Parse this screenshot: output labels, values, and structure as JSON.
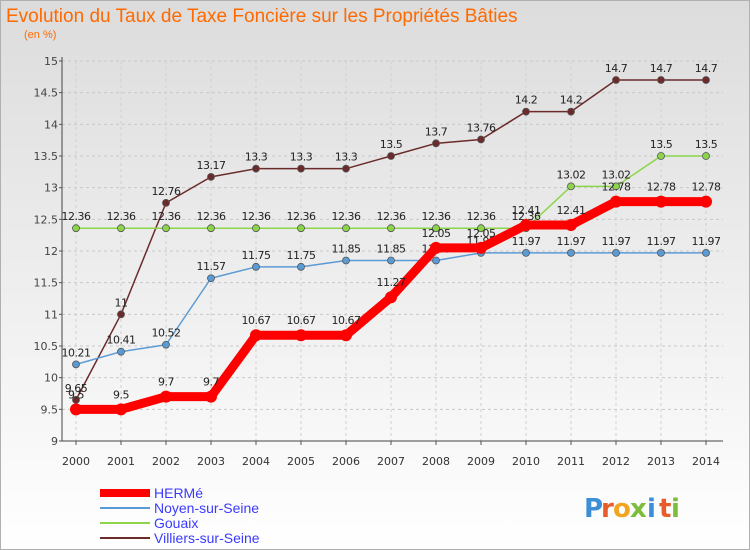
{
  "chart_data": {
    "type": "line",
    "title": "Evolution du Taux de Taxe Foncière sur les Propriétés Bâties",
    "subtitle": "(en %)",
    "xlabel": "",
    "ylabel": "",
    "ylim": [
      9,
      15
    ],
    "yticks": [
      "9",
      "9.5",
      "10",
      "10.5",
      "11",
      "11.5",
      "12",
      "12.5",
      "13",
      "13.5",
      "14",
      "14.5",
      "15"
    ],
    "grid": true,
    "legend_position": "bottom-left",
    "categories": [
      "2000",
      "2001",
      "2002",
      "2003",
      "2004",
      "2005",
      "2006",
      "2007",
      "2008",
      "2009",
      "2010",
      "2011",
      "2012",
      "2013",
      "2014"
    ],
    "series": [
      {
        "name": "HERMé",
        "color": "#ff0000",
        "values": [
          9.5,
          9.5,
          9.7,
          9.7,
          10.67,
          10.67,
          10.67,
          11.27,
          12.05,
          12.05,
          12.41,
          12.41,
          12.78,
          12.78,
          12.78
        ],
        "labels": [
          "9.5",
          "9.5",
          "9.7",
          "9.7",
          "10.67",
          "10.67",
          "10.67",
          "11.27",
          "12.05",
          "12.05",
          "12.41",
          "12.41",
          "12.78",
          "12.78",
          "12.78"
        ]
      },
      {
        "name": "Noyen-sur-Seine",
        "color": "#5b9bd5",
        "values": [
          10.21,
          10.41,
          10.52,
          11.57,
          11.75,
          11.75,
          11.85,
          11.85,
          11.85,
          11.97,
          11.97,
          11.97,
          11.97,
          11.97,
          11.97
        ],
        "labels": [
          "10.21",
          "10.41",
          "10.52",
          "11.57",
          "11.75",
          "11.75",
          "11.85",
          "11.85",
          "11.85",
          "11.97",
          "11.97",
          "11.97",
          "11.97",
          "11.97",
          "11.97"
        ]
      },
      {
        "name": "Gouaix",
        "color": "#8cd54b",
        "values": [
          12.36,
          12.36,
          12.36,
          12.36,
          12.36,
          12.36,
          12.36,
          12.36,
          12.36,
          12.36,
          12.36,
          13.02,
          13.02,
          13.5,
          13.5
        ],
        "labels": [
          "12.36",
          "12.36",
          "12.36",
          "12.36",
          "12.36",
          "12.36",
          "12.36",
          "12.36",
          "12.36",
          "12.36",
          "12.36",
          "13.02",
          "13.02",
          "13.5",
          "13.5"
        ]
      },
      {
        "name": "Villiers-sur-Seine",
        "color": "#6b2b2b",
        "values": [
          9.65,
          11,
          12.76,
          13.17,
          13.3,
          13.3,
          13.3,
          13.5,
          13.7,
          13.76,
          14.2,
          14.2,
          14.7,
          14.7,
          14.7
        ],
        "labels": [
          "9.65",
          "11",
          "12.76",
          "13.17",
          "13.3",
          "13.3",
          "13.3",
          "13.5",
          "13.7",
          "13.76",
          "14.2",
          "14.2",
          "14.7",
          "14.7",
          "14.7"
        ]
      }
    ]
  },
  "brand": {
    "letters": [
      "P",
      "r",
      "o",
      "x",
      "i",
      "t",
      "i"
    ],
    "colors": [
      "#3c8fd6",
      "#e65c2a",
      "#f2a51e",
      "#7cbd3a",
      "#3c8fd6",
      "#e65c2a",
      "#7cbd3a"
    ]
  }
}
